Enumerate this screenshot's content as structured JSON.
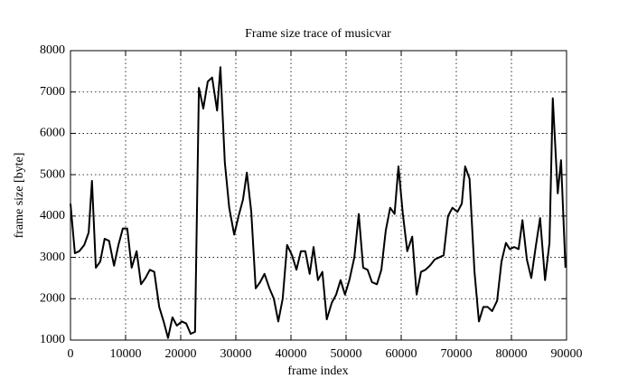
{
  "chart_data": {
    "type": "line",
    "title": "Frame size trace of musicvar",
    "xlabel": "frame index",
    "ylabel": "frame size [byte]",
    "xlim": [
      0,
      90000
    ],
    "xticks": [
      0,
      10000,
      20000,
      30000,
      40000,
      50000,
      60000,
      70000,
      80000,
      90000
    ],
    "ylim": [
      1000,
      8000
    ],
    "yticks": [
      1000,
      2000,
      3000,
      4000,
      5000,
      6000,
      7000,
      8000
    ],
    "grid": true,
    "series": [
      {
        "name": "musicvar",
        "color": "#000000",
        "x": [
          0,
          800,
          1600,
          2500,
          3300,
          3900,
          4600,
          5400,
          6200,
          7000,
          7900,
          8700,
          9500,
          10300,
          11100,
          12000,
          12800,
          13600,
          14400,
          15200,
          16100,
          16900,
          17700,
          18500,
          19300,
          20200,
          21000,
          21800,
          22600,
          23300,
          24100,
          24900,
          25700,
          26600,
          27200,
          28000,
          28800,
          29700,
          30500,
          31300,
          32000,
          32800,
          33600,
          34400,
          35200,
          36100,
          36900,
          37700,
          38500,
          39300,
          40200,
          41000,
          41800,
          42600,
          43400,
          44100,
          44900,
          45700,
          46500,
          47400,
          48200,
          49000,
          49800,
          50600,
          51500,
          52300,
          53100,
          53900,
          54700,
          55600,
          56400,
          57200,
          58000,
          58800,
          59500,
          60300,
          61100,
          62000,
          62800,
          63600,
          64400,
          65200,
          66100,
          66900,
          67700,
          68500,
          69300,
          70200,
          71000,
          71600,
          72400,
          73300,
          74100,
          74900,
          75700,
          76500,
          77400,
          78200,
          79000,
          79700,
          80500,
          81300,
          82000,
          82800,
          83600,
          84400,
          85200,
          86100,
          86900,
          87500,
          88400,
          89000,
          89800
        ],
        "values": [
          4300,
          3100,
          3150,
          3300,
          3600,
          4850,
          2750,
          2900,
          3450,
          3400,
          2800,
          3300,
          3700,
          3700,
          2750,
          3150,
          2350,
          2500,
          2700,
          2650,
          1800,
          1450,
          1050,
          1550,
          1350,
          1450,
          1400,
          1150,
          1200,
          7100,
          6600,
          7250,
          7350,
          6550,
          7600,
          5300,
          4200,
          3550,
          4000,
          4400,
          5050,
          4100,
          2250,
          2400,
          2600,
          2250,
          2000,
          1450,
          2000,
          3300,
          3050,
          2700,
          3150,
          3150,
          2600,
          3250,
          2450,
          2650,
          1500,
          1900,
          2100,
          2450,
          2100,
          2450,
          3000,
          4050,
          2750,
          2700,
          2400,
          2350,
          2700,
          3650,
          4200,
          4050,
          5200,
          4050,
          3150,
          3500,
          2100,
          2650,
          2700,
          2800,
          2950,
          3000,
          3050,
          4000,
          4200,
          4100,
          4300,
          5200,
          4900,
          2650,
          1450,
          1800,
          1800,
          1700,
          1950,
          2900,
          3350,
          3200,
          3250,
          3200,
          3900,
          2950,
          2500,
          3250,
          3950,
          2450,
          3350,
          6850,
          4550,
          5350,
          2750
        ]
      }
    ]
  }
}
